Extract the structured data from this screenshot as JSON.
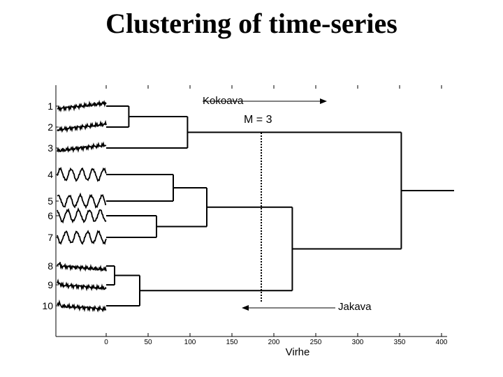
{
  "title": "Clustering of time-series",
  "chart_data": {
    "type": "dendrogram",
    "leaves": [
      "1",
      "2",
      "3",
      "4",
      "5",
      "6",
      "7",
      "8",
      "9",
      "10"
    ],
    "xlabel": "Virhe",
    "xlim": [
      0,
      400
    ],
    "xticks": [
      "0",
      "50",
      "100",
      "150",
      "200",
      "250",
      "300",
      "350",
      "400"
    ],
    "merges": [
      {
        "a": "1",
        "b": "2",
        "height": 27
      },
      {
        "a": "(1,2)",
        "b": "3",
        "height": 97
      },
      {
        "a": "6",
        "b": "7",
        "height": 60
      },
      {
        "a": "4",
        "b": "5",
        "height": 80
      },
      {
        "a": "(4,5)",
        "b": "(6,7)",
        "height": 120
      },
      {
        "a": "8",
        "b": "9",
        "height": 10
      },
      {
        "a": "(8,9)",
        "b": "10",
        "height": 40
      },
      {
        "a": "(4,5,6,7)",
        "b": "(8,9,10)",
        "height": 222
      },
      {
        "a": "(1,2,3)",
        "b": "(4..10)",
        "height": 352
      }
    ],
    "threshold": {
      "label": "M = 3",
      "x": 185
    },
    "annotations": {
      "right_arrow": "Kokoava",
      "left_arrow": "Jakava"
    }
  }
}
